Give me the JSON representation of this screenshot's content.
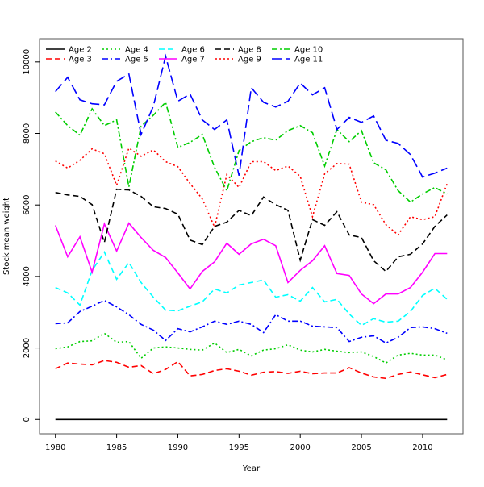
{
  "chart_data": {
    "type": "line",
    "title": "",
    "xlabel": "Year",
    "ylabel": "Stock mean weight",
    "xlim": [
      1978.7,
      2013.3
    ],
    "ylim": [
      -400,
      10650
    ],
    "xticks": [
      1980,
      1985,
      1990,
      1995,
      2000,
      2005,
      2010
    ],
    "yticks": [
      0,
      2000,
      4000,
      6000,
      8000,
      10000
    ],
    "grid": false,
    "legend_position": "top-left",
    "x": [
      1980,
      1981,
      1982,
      1983,
      1984,
      1985,
      1986,
      1987,
      1988,
      1989,
      1990,
      1991,
      1992,
      1993,
      1994,
      1995,
      1996,
      1997,
      1998,
      1999,
      2000,
      2001,
      2002,
      2003,
      2004,
      2005,
      2006,
      2007,
      2008,
      2009,
      2010,
      2011,
      2012
    ],
    "series": [
      {
        "name": "Age 2",
        "color": "#000000",
        "style": "solid",
        "values": [
          0,
          0,
          0,
          0,
          0,
          0,
          0,
          0,
          0,
          0,
          0,
          0,
          0,
          0,
          0,
          0,
          0,
          0,
          0,
          0,
          0,
          0,
          0,
          0,
          0,
          0,
          0,
          0,
          0,
          0,
          0,
          0,
          0
        ]
      },
      {
        "name": "Age 3",
        "color": "#ff0000",
        "style": "dashed",
        "values": [
          1420,
          1580,
          1550,
          1530,
          1650,
          1600,
          1460,
          1510,
          1280,
          1400,
          1620,
          1220,
          1260,
          1370,
          1420,
          1350,
          1240,
          1320,
          1340,
          1290,
          1350,
          1280,
          1300,
          1300,
          1450,
          1300,
          1190,
          1150,
          1260,
          1330,
          1250,
          1170,
          1260
        ]
      },
      {
        "name": "Age 4",
        "color": "#00cd00",
        "style": "dotted",
        "values": [
          1980,
          2030,
          2180,
          2200,
          2410,
          2160,
          2180,
          1710,
          2000,
          2030,
          2000,
          1960,
          1940,
          2140,
          1870,
          1960,
          1780,
          1940,
          1980,
          2090,
          1940,
          1890,
          1960,
          1910,
          1870,
          1890,
          1760,
          1580,
          1800,
          1850,
          1800,
          1800,
          1670
        ]
      },
      {
        "name": "Age 5",
        "color": "#0000ff",
        "style": "dashdot",
        "values": [
          2680,
          2700,
          3020,
          3170,
          3330,
          3150,
          2930,
          2660,
          2500,
          2210,
          2540,
          2450,
          2590,
          2750,
          2660,
          2750,
          2660,
          2430,
          2930,
          2750,
          2750,
          2610,
          2590,
          2570,
          2180,
          2300,
          2340,
          2140,
          2300,
          2570,
          2590,
          2540,
          2410
        ]
      },
      {
        "name": "Age 6",
        "color": "#00ffff",
        "style": "dashed",
        "values": [
          3690,
          3540,
          3200,
          4170,
          4680,
          3920,
          4390,
          3830,
          3420,
          3060,
          3040,
          3170,
          3290,
          3650,
          3540,
          3760,
          3830,
          3900,
          3420,
          3490,
          3310,
          3690,
          3290,
          3360,
          2950,
          2630,
          2820,
          2720,
          2750,
          3020,
          3470,
          3670,
          3360
        ]
      },
      {
        "name": "Age 7",
        "color": "#ff00ff",
        "style": "solid",
        "values": [
          5430,
          4550,
          5110,
          4120,
          5470,
          4710,
          5490,
          5090,
          4730,
          4530,
          4100,
          3650,
          4140,
          4410,
          4930,
          4620,
          4910,
          5040,
          4860,
          3830,
          4170,
          4440,
          4860,
          4080,
          4030,
          3510,
          3240,
          3510,
          3510,
          3690,
          4120,
          4640,
          4640
        ]
      },
      {
        "name": "Age 8",
        "color": "#000000",
        "style": "dashed",
        "values": [
          6350,
          6280,
          6240,
          6010,
          4950,
          6440,
          6420,
          6240,
          5950,
          5900,
          5740,
          5020,
          4890,
          5400,
          5520,
          5850,
          5700,
          6220,
          6010,
          5850,
          4460,
          5590,
          5430,
          5810,
          5160,
          5090,
          4440,
          4140,
          4550,
          4620,
          4910,
          5400,
          5720
        ]
      },
      {
        "name": "Age 9",
        "color": "#ff0000",
        "style": "dotted",
        "values": [
          7230,
          7030,
          7250,
          7570,
          7430,
          6550,
          7590,
          7360,
          7540,
          7210,
          7070,
          6600,
          6170,
          5380,
          6850,
          6490,
          7210,
          7210,
          6960,
          7090,
          6800,
          5670,
          6870,
          7160,
          7140,
          6080,
          6010,
          5450,
          5160,
          5670,
          5590,
          5670,
          6600
        ]
      },
      {
        "name": "Age 10",
        "color": "#00cd00",
        "style": "dashdot",
        "values": [
          8600,
          8220,
          7950,
          8690,
          8220,
          8380,
          6510,
          8200,
          8510,
          8870,
          7610,
          7750,
          7970,
          7050,
          6400,
          7520,
          7770,
          7880,
          7810,
          8080,
          8220,
          8020,
          7090,
          8110,
          7770,
          8080,
          7180,
          6980,
          6400,
          6080,
          6310,
          6490,
          6310
        ]
      },
      {
        "name": "Age 11",
        "color": "#0000ff",
        "style": "longdash",
        "values": [
          9170,
          9570,
          8940,
          8830,
          8800,
          9460,
          9660,
          7970,
          8760,
          10160,
          8900,
          9100,
          8380,
          8110,
          8380,
          6820,
          9280,
          8870,
          8740,
          8900,
          9410,
          9080,
          9280,
          8110,
          8450,
          8310,
          8490,
          7810,
          7720,
          7410,
          6780,
          6890,
          7030
        ]
      }
    ]
  }
}
